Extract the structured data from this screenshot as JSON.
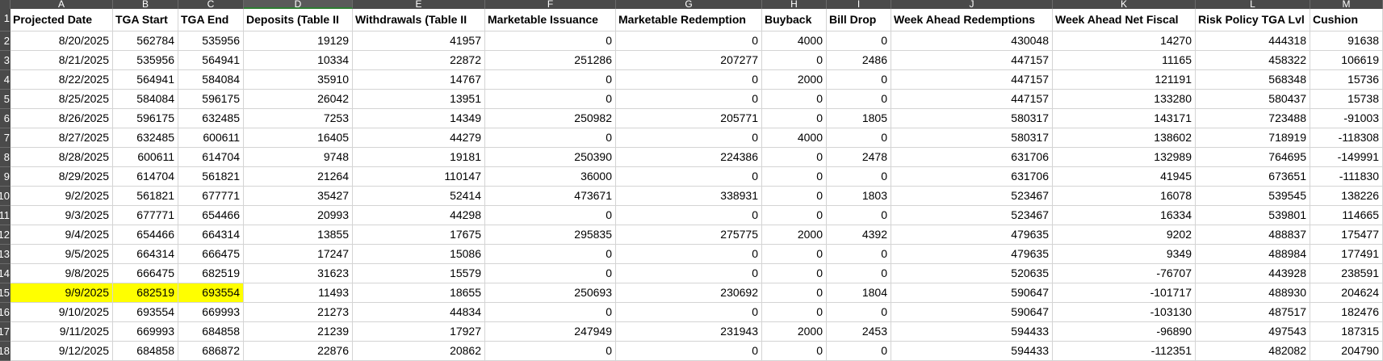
{
  "column_letters": [
    "A",
    "B",
    "C",
    "D",
    "E",
    "F",
    "G",
    "H",
    "I",
    "J",
    "K",
    "L",
    "M"
  ],
  "row_numbers": [
    "1",
    "2",
    "3",
    "4",
    "5",
    "6",
    "7",
    "8",
    "9",
    "10",
    "11",
    "12",
    "13",
    "14",
    "15",
    "16",
    "17",
    "18"
  ],
  "table": {
    "header": [
      "Projected Date",
      "TGA Start",
      "TGA End",
      "Deposits (Table II",
      "Withdrawals (Table II",
      "Marketable Issuance",
      "Marketable Redemption",
      "Buyback",
      "Bill Drop",
      "Week Ahead Redemptions",
      "Week Ahead Net Fiscal",
      "Risk Policy TGA Lvl",
      "Cushion"
    ],
    "rows": [
      [
        "8/20/2025",
        562784,
        535956,
        19129,
        41957,
        0,
        0,
        4000,
        0,
        430048,
        14270,
        444318,
        91638
      ],
      [
        "8/21/2025",
        535956,
        564941,
        10334,
        22872,
        251286,
        207277,
        0,
        2486,
        447157,
        11165,
        458322,
        106619
      ],
      [
        "8/22/2025",
        564941,
        584084,
        35910,
        14767,
        0,
        0,
        2000,
        0,
        447157,
        121191,
        568348,
        15736
      ],
      [
        "8/25/2025",
        584084,
        596175,
        26042,
        13951,
        0,
        0,
        0,
        0,
        447157,
        133280,
        580437,
        15738
      ],
      [
        "8/26/2025",
        596175,
        632485,
        7253,
        14349,
        250982,
        205771,
        0,
        1805,
        580317,
        143171,
        723488,
        -91003
      ],
      [
        "8/27/2025",
        632485,
        600611,
        16405,
        44279,
        0,
        0,
        4000,
        0,
        580317,
        138602,
        718919,
        -118308
      ],
      [
        "8/28/2025",
        600611,
        614704,
        9748,
        19181,
        250390,
        224386,
        0,
        2478,
        631706,
        132989,
        764695,
        -149991
      ],
      [
        "8/29/2025",
        614704,
        561821,
        21264,
        110147,
        36000,
        0,
        0,
        0,
        631706,
        41945,
        673651,
        -111830
      ],
      [
        "9/2/2025",
        561821,
        677771,
        35427,
        52414,
        473671,
        338931,
        0,
        1803,
        523467,
        16078,
        539545,
        138226
      ],
      [
        "9/3/2025",
        677771,
        654466,
        20993,
        44298,
        0,
        0,
        0,
        0,
        523467,
        16334,
        539801,
        114665
      ],
      [
        "9/4/2025",
        654466,
        664314,
        13855,
        17675,
        295835,
        275775,
        2000,
        4392,
        479635,
        9202,
        488837,
        175477
      ],
      [
        "9/5/2025",
        664314,
        666475,
        17247,
        15086,
        0,
        0,
        0,
        0,
        479635,
        9349,
        488984,
        177491
      ],
      [
        "9/8/2025",
        666475,
        682519,
        31623,
        15579,
        0,
        0,
        0,
        0,
        520635,
        -76707,
        443928,
        238591
      ],
      [
        "9/9/2025",
        682519,
        693554,
        11493,
        18655,
        250693,
        230692,
        0,
        1804,
        590647,
        -101717,
        488930,
        204624
      ],
      [
        "9/10/2025",
        693554,
        669993,
        21273,
        44834,
        0,
        0,
        0,
        0,
        590647,
        -103130,
        487517,
        182476
      ],
      [
        "9/11/2025",
        669993,
        684858,
        21239,
        17927,
        247949,
        231943,
        2000,
        2453,
        594433,
        -96890,
        497543,
        187315
      ],
      [
        "9/12/2025",
        684858,
        686872,
        22876,
        20862,
        0,
        0,
        0,
        0,
        594433,
        -112351,
        482082,
        204790
      ]
    ]
  }
}
